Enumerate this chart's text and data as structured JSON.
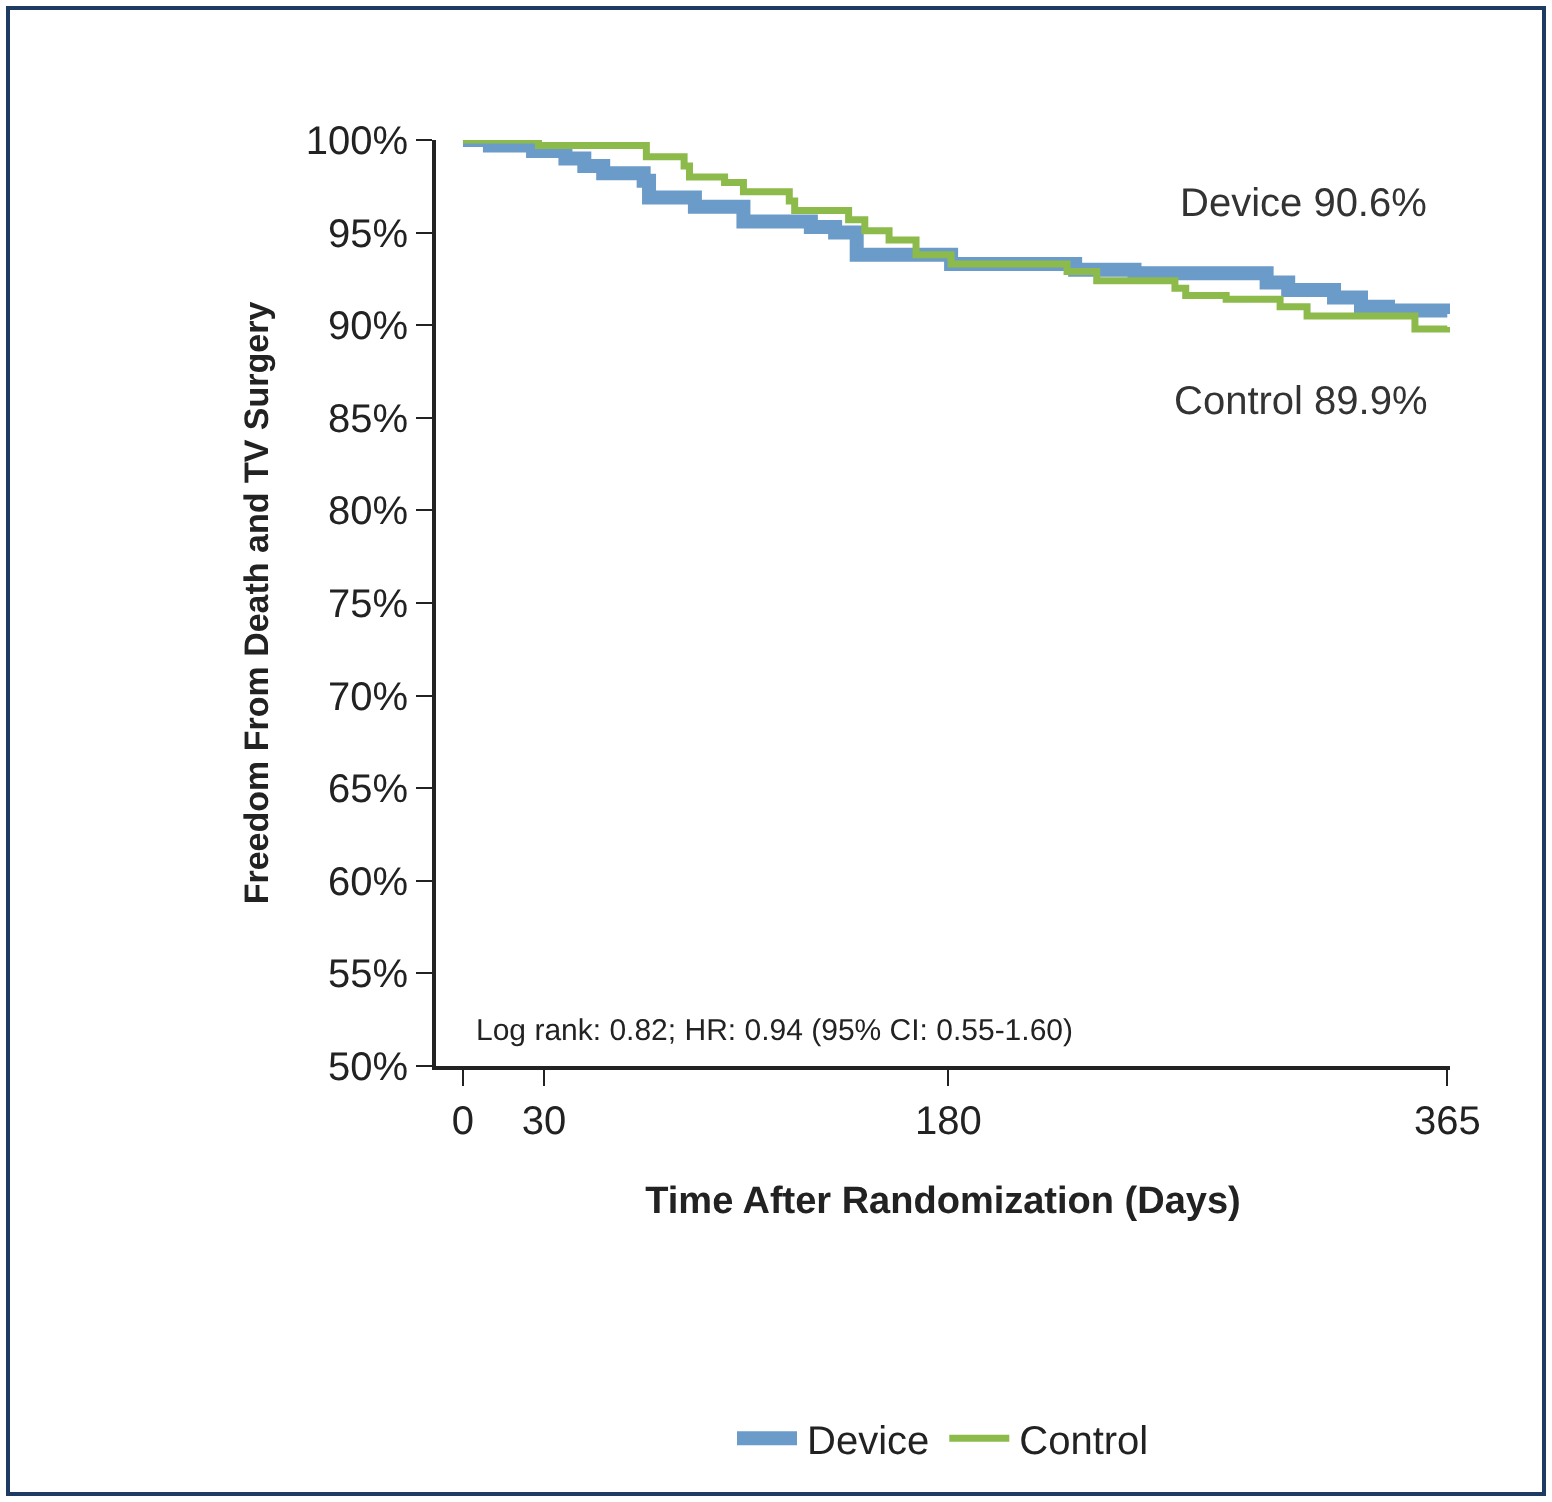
{
  "chart_data": {
    "type": "step",
    "xlabel": "Time After Randomization (Days)",
    "ylabel": "Freedom From Death and TV Surgery",
    "xlim": [
      -10,
      366
    ],
    "xticks": [
      0,
      30,
      180,
      365
    ],
    "ylim": [
      50,
      100
    ],
    "yticks": [
      {
        "value": 50,
        "label": "50%"
      },
      {
        "value": 55,
        "label": "55%"
      },
      {
        "value": 60,
        "label": "60%"
      },
      {
        "value": 65,
        "label": "65%"
      },
      {
        "value": 70,
        "label": "70%"
      },
      {
        "value": 75,
        "label": "75%"
      },
      {
        "value": 80,
        "label": "80%"
      },
      {
        "value": 85,
        "label": "85%"
      },
      {
        "value": 90,
        "label": "90%"
      },
      {
        "value": 95,
        "label": "95%"
      },
      {
        "value": 100,
        "label": "100%"
      }
    ],
    "grid": false,
    "legend": "bottom",
    "marker": "none",
    "line_style": "solid",
    "series": [
      {
        "name": "Device",
        "color": "#6b9bc8",
        "x": [
          0,
          10,
          26,
          38,
          45,
          52,
          67,
          69,
          86,
          104,
          129,
          138,
          146,
          181,
          227,
          249,
          298,
          306,
          323,
          333,
          343,
          365
        ],
        "values": [
          100,
          99.7,
          99.4,
          99.0,
          98.6,
          98.2,
          97.8,
          96.9,
          96.4,
          95.6,
          95.3,
          95.0,
          93.8,
          93.3,
          93.0,
          92.8,
          92.3,
          91.9,
          91.5,
          91.0,
          90.8,
          90.6
        ]
      },
      {
        "name": "Control",
        "color": "#8cbb4c",
        "x": [
          0,
          28,
          68,
          82,
          84,
          97,
          104,
          121,
          123,
          143,
          149,
          158,
          168,
          181,
          224,
          235,
          264,
          268,
          283,
          303,
          313,
          353,
          365
        ],
        "values": [
          100,
          99.7,
          99.1,
          98.6,
          98.0,
          97.7,
          97.2,
          96.7,
          96.2,
          95.7,
          95.1,
          94.6,
          93.8,
          93.3,
          92.9,
          92.4,
          92.0,
          91.6,
          91.4,
          91.0,
          90.5,
          89.8,
          89.9
        ]
      }
    ],
    "annotations": [
      {
        "text": "Device 90.6%",
        "x": 365,
        "y": 90.6
      },
      {
        "text": "Control 89.9%",
        "x": 365,
        "y": 89.9
      },
      "Log rank: 0.82; HR: 0.94 (95% CI: 0.55-1.60)"
    ]
  }
}
